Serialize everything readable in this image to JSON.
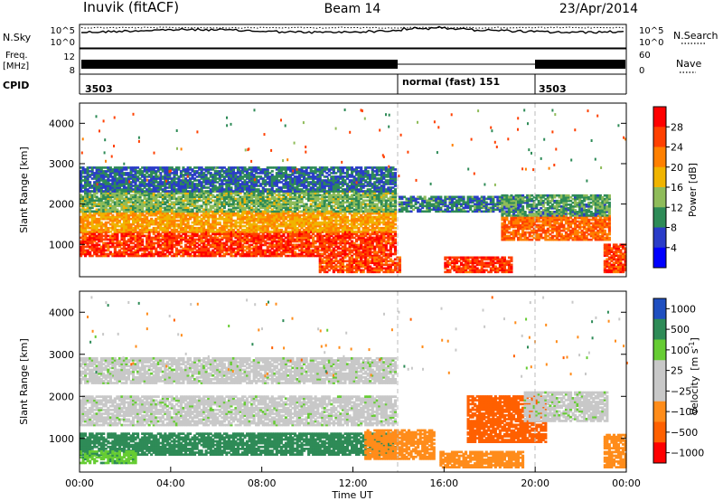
{
  "header": {
    "station": "Inuvik (fitACF)",
    "beam": "Beam 14",
    "date": "23/Apr/2014"
  },
  "chart_data": [
    {
      "type": "line",
      "panel": "noise",
      "left_label": "N.Sky",
      "right_label": "N.Search",
      "left_ticks": [
        "10^5",
        "10^0"
      ],
      "right_ticks": [
        "10^5",
        "10^0"
      ]
    },
    {
      "type": "line",
      "panel": "frequency",
      "left_label_line1": "Freq.",
      "left_label_line2": "[MHz]",
      "left_ticks": [
        "12",
        "8"
      ],
      "right_label": "Nave",
      "right_ticks": [
        "60",
        "0"
      ]
    },
    {
      "type": "table",
      "panel": "cpid",
      "label": "CPID",
      "segments": [
        {
          "start_hour": 0,
          "end_hour": 14,
          "text": "3503"
        },
        {
          "start_hour": 14,
          "end_hour": 20,
          "text": "normal (fast) 151"
        },
        {
          "start_hour": 20,
          "end_hour": 24,
          "text": "3503"
        }
      ]
    },
    {
      "type": "heatmap",
      "panel": "power",
      "ylabel": "Slant Range [km]",
      "y_ticks": [
        1000,
        2000,
        3000,
        4000
      ],
      "ylim": [
        200,
        4500
      ],
      "xlim": [
        0,
        24
      ],
      "colorbar_label": "Power [dB]",
      "colorbar_ticks": [
        "28",
        "24",
        "20",
        "16",
        "12",
        "8",
        "4"
      ],
      "colorbar_range": [
        0,
        32
      ],
      "colors": [
        "#0000ff",
        "#2a3cc8",
        "#2e8b57",
        "#8fbc5a",
        "#f0b400",
        "#ff8000",
        "#ff4000",
        "#ff0000"
      ],
      "bands": [
        {
          "start": 0,
          "end": 13.8,
          "range_lo": 700,
          "range_hi": 1300,
          "value": 27
        },
        {
          "start": 0,
          "end": 13.8,
          "range_lo": 1300,
          "range_hi": 1800,
          "value": 20
        },
        {
          "start": 0,
          "end": 13.8,
          "range_lo": 1800,
          "range_hi": 2300,
          "value": 13
        },
        {
          "start": 0,
          "end": 13.8,
          "range_lo": 2300,
          "range_hi": 2900,
          "value": 8
        },
        {
          "start": 10.5,
          "end": 14,
          "range_lo": 300,
          "range_hi": 700,
          "value": 26
        },
        {
          "start": 14,
          "end": 19.5,
          "range_lo": 1800,
          "range_hi": 2200,
          "value": 9
        },
        {
          "start": 16,
          "end": 19,
          "range_lo": 300,
          "range_hi": 700,
          "value": 27
        },
        {
          "start": 18.5,
          "end": 23.3,
          "range_lo": 1100,
          "range_hi": 1700,
          "value": 24
        },
        {
          "start": 18.5,
          "end": 23.3,
          "range_lo": 1700,
          "range_hi": 2200,
          "value": 11
        },
        {
          "start": 23,
          "end": 24,
          "range_lo": 300,
          "range_hi": 1000,
          "value": 26
        }
      ]
    },
    {
      "type": "heatmap",
      "panel": "velocity",
      "ylabel": "Slant Range [km]",
      "y_ticks": [
        1000,
        2000,
        3000,
        4000
      ],
      "ylim": [
        200,
        4500
      ],
      "xlim": [
        0,
        24
      ],
      "xlabel": "Time UT",
      "x_ticks": [
        "00:00",
        "04:00",
        "08:00",
        "12:00",
        "16:00",
        "20:00",
        "00:00"
      ],
      "colorbar_label_main": "Velocity",
      "colorbar_label_unit": "[m s",
      "colorbar_label_sup": "-1",
      "colorbar_label_close": "]",
      "colorbar_ticks": [
        "1000",
        "500",
        "100",
        "25",
        "−25",
        "−100",
        "−500",
        "−1000"
      ],
      "colors": [
        "#ff0000",
        "#ff6000",
        "#ff8c1a",
        "#c8c8c8",
        "#c8c8c8",
        "#66cc33",
        "#2e8b57",
        "#1f4fc0"
      ],
      "bands": [
        {
          "start": 0,
          "end": 13.8,
          "range_lo": 600,
          "range_hi": 1100,
          "value": 300
        },
        {
          "start": 0,
          "end": 13.8,
          "range_lo": 1300,
          "range_hi": 2000,
          "value": 0
        },
        {
          "start": 0,
          "end": 13.8,
          "range_lo": 2300,
          "range_hi": 2900,
          "value": 0
        },
        {
          "start": 0,
          "end": 2.5,
          "range_lo": 400,
          "range_hi": 700,
          "value": 80
        },
        {
          "start": 12.5,
          "end": 15.5,
          "range_lo": 500,
          "range_hi": 1200,
          "value": -300
        },
        {
          "start": 15.8,
          "end": 19.5,
          "range_lo": 300,
          "range_hi": 700,
          "value": -300
        },
        {
          "start": 17,
          "end": 20.5,
          "range_lo": 900,
          "range_hi": 2000,
          "value": -600
        },
        {
          "start": 19.5,
          "end": 23.2,
          "range_lo": 1400,
          "range_hi": 2100,
          "value": 0
        },
        {
          "start": 23,
          "end": 24,
          "range_lo": 300,
          "range_hi": 1100,
          "value": -400
        }
      ]
    }
  ]
}
